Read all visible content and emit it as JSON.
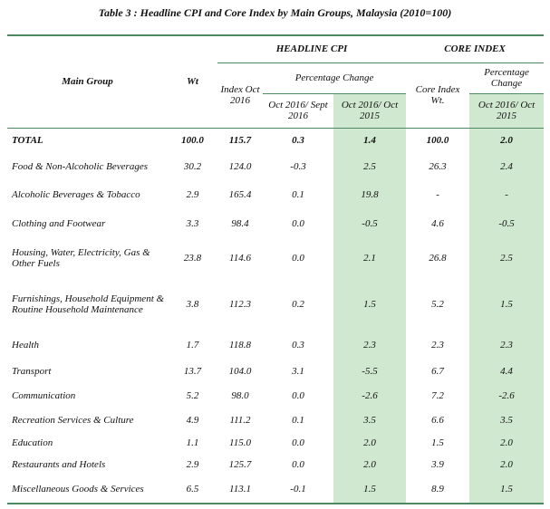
{
  "title": "Table 3 : Headline CPI and Core Index by Main Groups, Malaysia (2010=100)",
  "header": {
    "main_group": "Main Group",
    "wt": "Wt",
    "headline_cpi": "HEADLINE CPI",
    "core_index": "CORE INDEX",
    "index_oct_2016": "Index Oct 2016",
    "headline_pct_change": "Percentage Change",
    "col_oct16_sept16": "Oct 2016/ Sept 2016",
    "col_oct16_oct15": "Oct 2016/ Oct 2015",
    "core_index_wt": "Core Index Wt.",
    "core_pct_change": "Percentage Change",
    "core_oct16_oct15": "Oct 2016/ Oct 2015"
  },
  "rows": [
    [
      "TOTAL",
      "100.0",
      "115.7",
      "0.3",
      "1.4",
      "100.0",
      "2.0"
    ],
    [
      "Food & Non-Alcoholic Beverages",
      "30.2",
      "124.0",
      "-0.3",
      "2.5",
      "26.3",
      "2.4"
    ],
    [
      "Alcoholic Beverages & Tobacco",
      "2.9",
      "165.4",
      "0.1",
      "19.8",
      "-",
      "-"
    ],
    [
      "Clothing and Footwear",
      "3.3",
      "98.4",
      "0.0",
      "-0.5",
      "4.6",
      "-0.5"
    ],
    [
      "Housing, Water, Electricity, Gas & Other Fuels",
      "23.8",
      "114.6",
      "0.0",
      "2.1",
      "26.8",
      "2.5"
    ],
    [
      "Furnishings, Household Equipment & Routine Household Maintenance",
      "3.8",
      "112.3",
      "0.2",
      "1.5",
      "5.2",
      "1.5"
    ],
    [
      "Health",
      "1.7",
      "118.8",
      "0.3",
      "2.3",
      "2.3",
      "2.3"
    ],
    [
      "Transport",
      "13.7",
      "104.0",
      "3.1",
      "-5.5",
      "6.7",
      "4.4"
    ],
    [
      "Communication",
      "5.2",
      "98.0",
      "0.0",
      "-2.6",
      "7.2",
      "-2.6"
    ],
    [
      "Recreation Services & Culture",
      "4.9",
      "111.2",
      "0.1",
      "3.5",
      "6.6",
      "3.5"
    ],
    [
      "Education",
      "1.1",
      "115.0",
      "0.0",
      "2.0",
      "1.5",
      "2.0"
    ],
    [
      "Restaurants and Hotels",
      "2.9",
      "125.7",
      "0.0",
      "2.0",
      "3.9",
      "2.0"
    ],
    [
      "Miscellaneous Goods & Services",
      "6.5",
      "113.1",
      "-0.1",
      "1.5",
      "8.9",
      "1.5"
    ]
  ]
}
